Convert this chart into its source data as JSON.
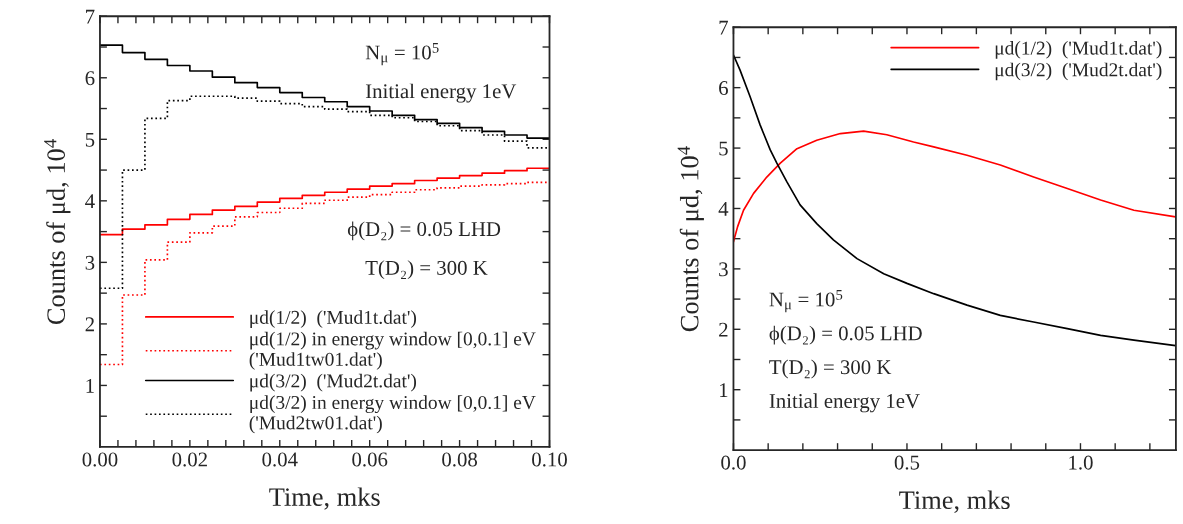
{
  "chart_data": [
    {
      "type": "step",
      "xlabel": "Time, mks",
      "ylabel": "Counts of μd, 10$^{4}$",
      "xlim": [
        0,
        0.1
      ],
      "ylim": [
        0,
        7
      ],
      "xticks": [
        {
          "value": 0,
          "label": "0.00"
        },
        {
          "value": 0.004,
          "label": null
        },
        {
          "value": 0.008,
          "label": null
        },
        {
          "value": 0.012,
          "label": null
        },
        {
          "value": 0.016,
          "label": null
        },
        {
          "value": 0.02,
          "label": "0.02"
        },
        {
          "value": 0.024,
          "label": null
        },
        {
          "value": 0.028,
          "label": null
        },
        {
          "value": 0.032,
          "label": null
        },
        {
          "value": 0.036,
          "label": null
        },
        {
          "value": 0.04,
          "label": "0.04"
        },
        {
          "value": 0.044,
          "label": null
        },
        {
          "value": 0.048,
          "label": null
        },
        {
          "value": 0.052,
          "label": null
        },
        {
          "value": 0.056,
          "label": null
        },
        {
          "value": 0.06,
          "label": "0.06"
        },
        {
          "value": 0.064,
          "label": null
        },
        {
          "value": 0.068,
          "label": null
        },
        {
          "value": 0.072,
          "label": null
        },
        {
          "value": 0.076,
          "label": null
        },
        {
          "value": 0.08,
          "label": "0.08"
        },
        {
          "value": 0.084,
          "label": null
        },
        {
          "value": 0.088,
          "label": null
        },
        {
          "value": 0.092,
          "label": null
        },
        {
          "value": 0.096,
          "label": null
        },
        {
          "value": 0.1,
          "label": "0.10"
        }
      ],
      "yticks": [
        {
          "value": 0.5,
          "label": null
        },
        1,
        {
          "value": 1.5,
          "label": null
        },
        2,
        {
          "value": 2.5,
          "label": null
        },
        3,
        {
          "value": 3.5,
          "label": null
        },
        4,
        {
          "value": 4.5,
          "label": null
        },
        5,
        {
          "value": 5.5,
          "label": null
        },
        6,
        {
          "value": 6.5,
          "label": null
        },
        7
      ],
      "x": [
        0,
        0.005,
        0.01,
        0.015,
        0.02,
        0.025,
        0.03,
        0.035,
        0.04,
        0.045,
        0.05,
        0.055,
        0.06,
        0.065,
        0.07,
        0.075,
        0.08,
        0.085,
        0.09,
        0.095,
        0.1
      ],
      "series": [
        {
          "name": "μd(1/2)  ('Mud1t.dat')",
          "color": "#ff0000",
          "line_style": "solid",
          "values": [
            3.45,
            3.54,
            3.61,
            3.7,
            3.78,
            3.85,
            3.91,
            3.98,
            4.04,
            4.09,
            4.14,
            4.19,
            4.24,
            4.28,
            4.33,
            4.37,
            4.41,
            4.45,
            4.49,
            4.53,
            4.53
          ]
        },
        {
          "name": "μd(1/2) in energy window [0,0.1] eV\n('Mud1tw01.dat')",
          "color": "#ff0000",
          "line_style": "dotted",
          "values": [
            1.34,
            2.47,
            3.04,
            3.33,
            3.48,
            3.59,
            3.74,
            3.81,
            3.88,
            3.96,
            4.01,
            4.06,
            4.1,
            4.14,
            4.18,
            4.21,
            4.24,
            4.26,
            4.28,
            4.3,
            4.3
          ]
        },
        {
          "name": "μd(3/2)  ('Mud2t.dat')",
          "color": "#000000",
          "line_style": "solid",
          "values": [
            6.53,
            6.41,
            6.3,
            6.2,
            6.11,
            6.01,
            5.92,
            5.84,
            5.76,
            5.68,
            5.61,
            5.53,
            5.46,
            5.39,
            5.32,
            5.26,
            5.19,
            5.13,
            5.07,
            5.02,
            5.02
          ]
        },
        {
          "name": "μd(3/2) in energy window [0,0.1] eV\n('Mud2tw01.dat')",
          "color": "#000000",
          "line_style": "dotted",
          "values": [
            2.58,
            4.5,
            5.34,
            5.63,
            5.7,
            5.7,
            5.67,
            5.62,
            5.58,
            5.53,
            5.49,
            5.45,
            5.39,
            5.35,
            5.29,
            5.22,
            5.14,
            5.07,
            4.97,
            4.86,
            4.86
          ]
        }
      ],
      "annotations": [
        "N$_{μ}$ = 10$^{5}$",
        "Initial energy 1eV",
        "ϕ(D₂) = 0.05 LHD",
        "T(D₂) = 300 K"
      ],
      "legend": "bottom right",
      "grid": false,
      "marker": "none"
    },
    {
      "type": "line",
      "xlabel": "Time, mks",
      "ylabel": "Counts of μd, 10$^{4}$",
      "xlim": [
        0,
        1.275
      ],
      "ylim": [
        0,
        7
      ],
      "xticks": [
        {
          "value": 0,
          "label": "0.0"
        },
        {
          "value": 0.1,
          "label": null
        },
        {
          "value": 0.2,
          "label": null
        },
        {
          "value": 0.3,
          "label": null
        },
        {
          "value": 0.4,
          "label": null
        },
        {
          "value": 0.5,
          "label": "0.5"
        },
        {
          "value": 0.6,
          "label": null
        },
        {
          "value": 0.7,
          "label": null
        },
        {
          "value": 0.8,
          "label": null
        },
        {
          "value": 0.9,
          "label": null
        },
        {
          "value": 1.0,
          "label": "1.0"
        },
        {
          "value": 1.1,
          "label": null
        },
        {
          "value": 1.2,
          "label": null
        }
      ],
      "yticks": [
        {
          "value": 0.5,
          "label": null
        },
        1,
        {
          "value": 1.5,
          "label": null
        },
        2,
        {
          "value": 2.5,
          "label": null
        },
        3,
        {
          "value": 3.5,
          "label": null
        },
        4,
        {
          "value": 4.5,
          "label": null
        },
        5,
        {
          "value": 5.5,
          "label": null
        },
        6,
        {
          "value": 6.5,
          "label": null
        },
        7
      ],
      "series": [
        {
          "name": "μd(1/2)  ('Mud1t.dat')",
          "color": "#ff0000",
          "x": [
            0,
            0.012,
            0.029,
            0.058,
            0.096,
            0.135,
            0.183,
            0.24,
            0.308,
            0.375,
            0.442,
            0.519,
            0.577,
            0.673,
            0.769,
            0.865,
            0.962,
            1.058,
            1.154,
            1.274
          ],
          "values": [
            3.45,
            3.7,
            3.97,
            4.25,
            4.52,
            4.75,
            4.99,
            5.13,
            5.24,
            5.28,
            5.22,
            5.1,
            5.02,
            4.88,
            4.72,
            4.52,
            4.33,
            4.14,
            3.97,
            3.86
          ]
        },
        {
          "name": "μd(3/2)  ('Mud2t.dat')",
          "color": "#000000",
          "x": [
            0,
            0.019,
            0.048,
            0.077,
            0.106,
            0.125,
            0.154,
            0.192,
            0.24,
            0.288,
            0.356,
            0.433,
            0.5,
            0.577,
            0.673,
            0.769,
            0.865,
            0.962,
            1.058,
            1.154,
            1.274
          ],
          "values": [
            6.54,
            6.29,
            5.85,
            5.38,
            4.97,
            4.75,
            4.44,
            4.06,
            3.75,
            3.48,
            3.17,
            2.92,
            2.76,
            2.59,
            2.4,
            2.23,
            2.12,
            2.01,
            1.9,
            1.82,
            1.73
          ]
        }
      ],
      "annotations": [
        "N$_{μ}$ = 10$^{5}$",
        "ϕ(D₂) = 0.05 LHD",
        "T(D₂) = 300 K",
        "Initial energy 1eV"
      ],
      "legend": "top right",
      "grid": false,
      "marker": "none"
    }
  ]
}
